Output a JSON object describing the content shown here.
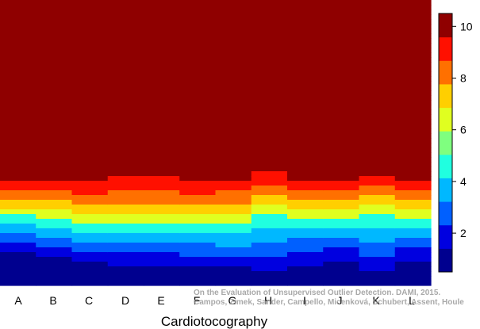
{
  "chart_data": {
    "type": "heatmap",
    "title": "",
    "xlabel": "Cardiotocography",
    "ylabel": "",
    "categories": [
      "A",
      "B",
      "C",
      "D",
      "E",
      "F",
      "G",
      "H",
      "I",
      "J",
      "K",
      "L"
    ],
    "colorbar": {
      "range": [
        0.5,
        10.5
      ],
      "ticks": [
        2,
        4,
        6,
        8,
        10
      ],
      "colors": [
        "#00008f",
        "#0000e0",
        "#0060ff",
        "#00b8ff",
        "#20ffe0",
        "#7fff7f",
        "#e0ff20",
        "#ffcf00",
        "#ff7000",
        "#ff1000",
        "#8f0000"
      ],
      "position": "right"
    },
    "rows": 60,
    "columns": [
      {
        "name": "A",
        "values": [
          10,
          10,
          10,
          10,
          10,
          10,
          10,
          10,
          10,
          10,
          10,
          10,
          10,
          10,
          10,
          10,
          10,
          10,
          10,
          10,
          10,
          10,
          10,
          10,
          10,
          10,
          10,
          10,
          10,
          10,
          10,
          10,
          10,
          10,
          10,
          10,
          10,
          10,
          9,
          9,
          8,
          8,
          7,
          7,
          6,
          5,
          5,
          4,
          4,
          3,
          3,
          2,
          2,
          1,
          1,
          1,
          1,
          1,
          1,
          1
        ]
      },
      {
        "name": "B",
        "values": [
          10,
          10,
          10,
          10,
          10,
          10,
          10,
          10,
          10,
          10,
          10,
          10,
          10,
          10,
          10,
          10,
          10,
          10,
          10,
          10,
          10,
          10,
          10,
          10,
          10,
          10,
          10,
          10,
          10,
          10,
          10,
          10,
          10,
          10,
          10,
          10,
          10,
          10,
          9,
          9,
          8,
          8,
          7,
          7,
          6,
          6,
          5,
          5,
          4,
          4,
          3,
          3,
          2,
          2,
          1,
          1,
          1,
          1,
          1,
          1
        ]
      },
      {
        "name": "C",
        "values": [
          10,
          10,
          10,
          10,
          10,
          10,
          10,
          10,
          10,
          10,
          10,
          10,
          10,
          10,
          10,
          10,
          10,
          10,
          10,
          10,
          10,
          10,
          10,
          10,
          10,
          10,
          10,
          10,
          10,
          10,
          10,
          10,
          10,
          10,
          10,
          10,
          10,
          10,
          9,
          9,
          9,
          8,
          8,
          7,
          7,
          6,
          6,
          5,
          5,
          4,
          4,
          3,
          3,
          2,
          2,
          1,
          1,
          1,
          1,
          1
        ]
      },
      {
        "name": "D",
        "values": [
          10,
          10,
          10,
          10,
          10,
          10,
          10,
          10,
          10,
          10,
          10,
          10,
          10,
          10,
          10,
          10,
          10,
          10,
          10,
          10,
          10,
          10,
          10,
          10,
          10,
          10,
          10,
          10,
          10,
          10,
          10,
          10,
          10,
          10,
          10,
          10,
          10,
          9,
          9,
          9,
          8,
          8,
          8,
          7,
          7,
          6,
          6,
          5,
          5,
          4,
          4,
          3,
          3,
          2,
          2,
          2,
          1,
          1,
          1,
          1
        ]
      },
      {
        "name": "E",
        "values": [
          10,
          10,
          10,
          10,
          10,
          10,
          10,
          10,
          10,
          10,
          10,
          10,
          10,
          10,
          10,
          10,
          10,
          10,
          10,
          10,
          10,
          10,
          10,
          10,
          10,
          10,
          10,
          10,
          10,
          10,
          10,
          10,
          10,
          10,
          10,
          10,
          10,
          9,
          9,
          9,
          8,
          8,
          8,
          7,
          7,
          6,
          6,
          5,
          5,
          4,
          4,
          3,
          3,
          2,
          2,
          2,
          1,
          1,
          1,
          1
        ]
      },
      {
        "name": "F",
        "values": [
          10,
          10,
          10,
          10,
          10,
          10,
          10,
          10,
          10,
          10,
          10,
          10,
          10,
          10,
          10,
          10,
          10,
          10,
          10,
          10,
          10,
          10,
          10,
          10,
          10,
          10,
          10,
          10,
          10,
          10,
          10,
          10,
          10,
          10,
          10,
          10,
          10,
          10,
          9,
          9,
          9,
          8,
          8,
          7,
          7,
          6,
          6,
          5,
          5,
          4,
          4,
          3,
          3,
          3,
          2,
          2,
          1,
          1,
          1,
          1
        ]
      },
      {
        "name": "G",
        "values": [
          10,
          10,
          10,
          10,
          10,
          10,
          10,
          10,
          10,
          10,
          10,
          10,
          10,
          10,
          10,
          10,
          10,
          10,
          10,
          10,
          10,
          10,
          10,
          10,
          10,
          10,
          10,
          10,
          10,
          10,
          10,
          10,
          10,
          10,
          10,
          10,
          10,
          10,
          9,
          9,
          8,
          8,
          8,
          7,
          7,
          6,
          6,
          5,
          5,
          4,
          4,
          4,
          3,
          3,
          2,
          2,
          1,
          1,
          1,
          1
        ]
      },
      {
        "name": "H",
        "values": [
          10,
          10,
          10,
          10,
          10,
          10,
          10,
          10,
          10,
          10,
          10,
          10,
          10,
          10,
          10,
          10,
          10,
          10,
          10,
          10,
          10,
          10,
          10,
          10,
          10,
          10,
          10,
          10,
          10,
          10,
          10,
          10,
          10,
          10,
          10,
          10,
          9,
          9,
          9,
          8,
          8,
          7,
          7,
          6,
          6,
          5,
          5,
          5,
          4,
          4,
          4,
          3,
          3,
          3,
          2,
          2,
          2,
          1,
          1,
          1
        ]
      },
      {
        "name": "I",
        "values": [
          10,
          10,
          10,
          10,
          10,
          10,
          10,
          10,
          10,
          10,
          10,
          10,
          10,
          10,
          10,
          10,
          10,
          10,
          10,
          10,
          10,
          10,
          10,
          10,
          10,
          10,
          10,
          10,
          10,
          10,
          10,
          10,
          10,
          10,
          10,
          10,
          10,
          10,
          9,
          9,
          8,
          8,
          7,
          7,
          6,
          6,
          5,
          5,
          4,
          4,
          3,
          3,
          3,
          2,
          2,
          2,
          1,
          1,
          1,
          1
        ]
      },
      {
        "name": "J",
        "values": [
          10,
          10,
          10,
          10,
          10,
          10,
          10,
          10,
          10,
          10,
          10,
          10,
          10,
          10,
          10,
          10,
          10,
          10,
          10,
          10,
          10,
          10,
          10,
          10,
          10,
          10,
          10,
          10,
          10,
          10,
          10,
          10,
          10,
          10,
          10,
          10,
          10,
          10,
          9,
          9,
          8,
          8,
          7,
          7,
          6,
          6,
          5,
          5,
          4,
          4,
          3,
          3,
          2,
          2,
          2,
          1,
          1,
          1,
          1,
          1
        ]
      },
      {
        "name": "K",
        "values": [
          10,
          10,
          10,
          10,
          10,
          10,
          10,
          10,
          10,
          10,
          10,
          10,
          10,
          10,
          10,
          10,
          10,
          10,
          10,
          10,
          10,
          10,
          10,
          10,
          10,
          10,
          10,
          10,
          10,
          10,
          10,
          10,
          10,
          10,
          10,
          10,
          10,
          9,
          9,
          8,
          8,
          7,
          7,
          6,
          6,
          5,
          5,
          5,
          4,
          4,
          4,
          3,
          3,
          3,
          2,
          2,
          2,
          1,
          1,
          1
        ]
      },
      {
        "name": "L",
        "values": [
          10,
          10,
          10,
          10,
          10,
          10,
          10,
          10,
          10,
          10,
          10,
          10,
          10,
          10,
          10,
          10,
          10,
          10,
          10,
          10,
          10,
          10,
          10,
          10,
          10,
          10,
          10,
          10,
          10,
          10,
          10,
          10,
          10,
          10,
          10,
          10,
          10,
          10,
          9,
          9,
          8,
          8,
          7,
          7,
          6,
          6,
          5,
          5,
          4,
          4,
          3,
          3,
          2,
          2,
          2,
          1,
          1,
          1,
          1,
          1
        ]
      }
    ]
  },
  "watermark": {
    "line1": "On the Evaluation of Unsupervised Outlier Detection. DAMI, 2015.",
    "line2": "Campos, Zimek, Sander, Campello, Micenková, Schubert, Assent, Houle"
  }
}
